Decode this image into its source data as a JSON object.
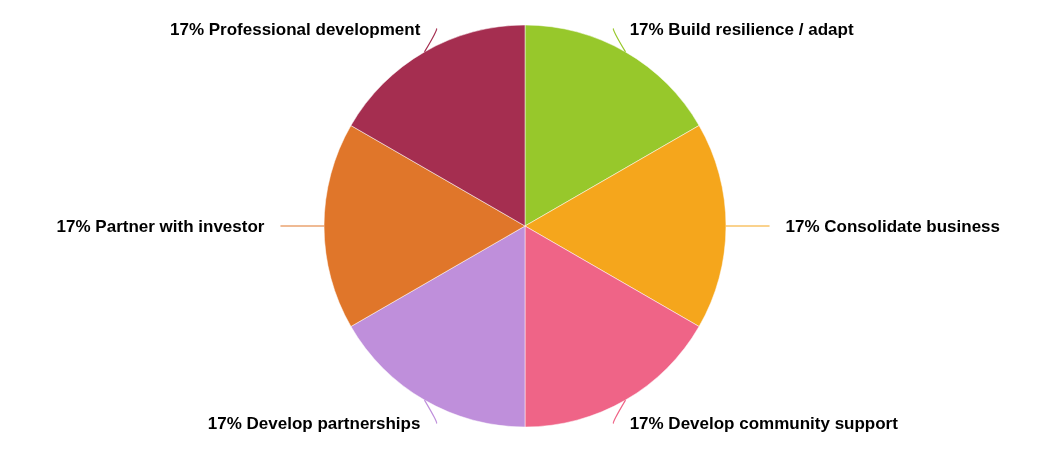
{
  "chart_data": {
    "type": "pie",
    "categories": [
      "Build resilience / adapt",
      "Consolidate business",
      "Develop community support",
      "Develop partnerships",
      "Partner with investor",
      "Professional development"
    ],
    "values": [
      17,
      17,
      17,
      17,
      17,
      17
    ],
    "value_labels": [
      "17%",
      "17%",
      "17%",
      "17%",
      "17%",
      "17%"
    ],
    "colors": [
      "#97c82b",
      "#f5a61c",
      "#ef6487",
      "#bf8fdb",
      "#e0762a",
      "#a52e50"
    ]
  }
}
